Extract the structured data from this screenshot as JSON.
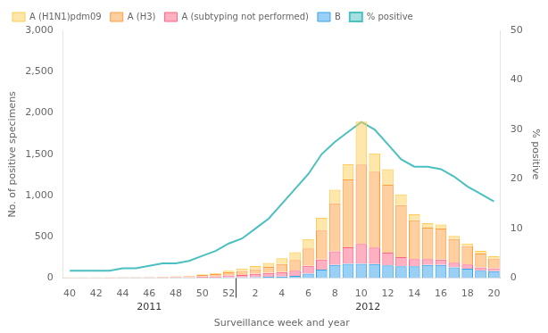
{
  "chart_data": {
    "type": "bar",
    "stacked": true,
    "grid": false,
    "legend": "upper left",
    "xlabel": "Surveillance week and year",
    "ylabel": "No. of positive specimens",
    "y2label": "% positive",
    "categories": [
      "40",
      null,
      "42",
      null,
      "44",
      null,
      "46",
      null,
      "48",
      null,
      "50",
      null,
      "52",
      null,
      "2",
      null,
      "4",
      null,
      "6",
      null,
      "8",
      null,
      "10",
      null,
      "12",
      null,
      "14",
      null,
      "16",
      null,
      "18",
      null,
      "20"
    ],
    "ylim": [
      0,
      3000
    ],
    "yticks": [
      0,
      500,
      {
        "value": 1000,
        "label": "1,000"
      },
      {
        "value": 1500,
        "label": "1,500"
      },
      {
        "value": 2000,
        "label": "2,000"
      },
      {
        "value": 2500,
        "label": "2,500"
      },
      {
        "value": 3000,
        "label": "3,000"
      }
    ],
    "y2lim": [
      0,
      50
    ],
    "y2ticks": [
      0,
      10,
      20,
      30,
      40,
      50
    ],
    "series": [
      {
        "name": "B",
        "values": [
          2,
          2,
          2,
          2,
          3,
          3,
          3,
          3,
          3,
          3,
          5,
          6,
          8,
          10,
          12,
          16,
          20,
          28,
          55,
          105,
          160,
          175,
          175,
          170,
          155,
          145,
          145,
          160,
          160,
          130,
          115,
          90,
          85
        ]
      },
      {
        "name": "A (subtyping not performed)",
        "values": [
          3,
          3,
          3,
          4,
          4,
          5,
          6,
          7,
          8,
          10,
          15,
          18,
          25,
          30,
          40,
          48,
          55,
          62,
          95,
          120,
          165,
          200,
          240,
          200,
          155,
          110,
          85,
          72,
          65,
          58,
          50,
          42,
          35
        ]
      },
      {
        "name": "A (H3)",
        "values": [
          3,
          3,
          3,
          3,
          4,
          5,
          6,
          7,
          9,
          12,
          18,
          25,
          38,
          48,
          58,
          72,
          95,
          130,
          210,
          360,
          580,
          820,
          960,
          920,
          820,
          630,
          470,
          380,
          375,
          285,
          225,
          165,
          120
        ]
      },
      {
        "name": "A (H1N1)pdm09",
        "values": [
          3,
          3,
          3,
          3,
          3,
          3,
          4,
          4,
          5,
          6,
          8,
          12,
          20,
          28,
          38,
          48,
          72,
          95,
          115,
          145,
          165,
          185,
          520,
          220,
          190,
          130,
          75,
          55,
          50,
          38,
          30,
          35,
          25
        ]
      },
      {
        "name": "% positive",
        "type": "line",
        "axis": "y2",
        "marker": "none",
        "values": [
          1.5,
          1.5,
          1.5,
          1.5,
          2.0,
          2.0,
          2.5,
          3.0,
          3.0,
          3.5,
          4.5,
          5.5,
          7.0,
          8.0,
          10.0,
          12.0,
          15.0,
          18.0,
          21.0,
          25.0,
          27.5,
          29.5,
          31.5,
          30.0,
          27.0,
          24.0,
          22.5,
          22.5,
          22.0,
          20.5,
          18.5,
          17.0,
          15.5
        ]
      }
    ],
    "annotations": [
      {
        "text": "2011",
        "span": [
          0,
          12
        ]
      },
      {
        "text": "2012",
        "span": [
          13,
          32
        ]
      }
    ]
  }
}
